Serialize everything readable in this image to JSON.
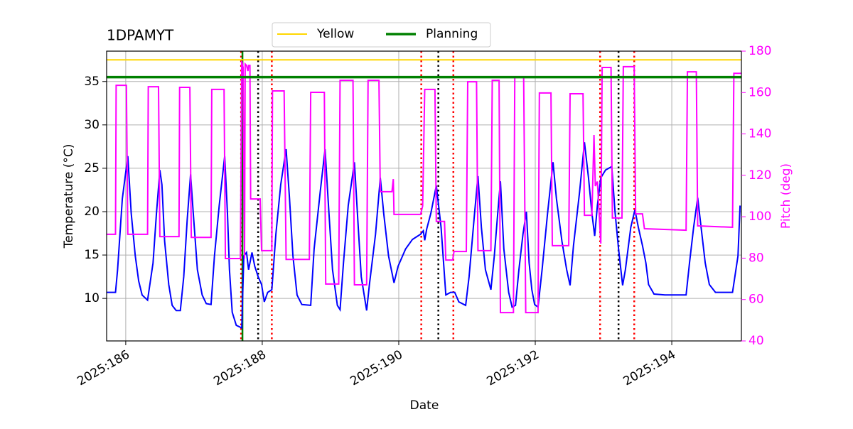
{
  "chart_data": {
    "type": "line",
    "title": "1DPAMYT",
    "xlabel": "Date",
    "ylabel": "Temperature (°C)",
    "y2label": "Pitch (deg)",
    "y2color": "#ff00ff",
    "grid": true,
    "xlim": [
      185.72,
      195.02
    ],
    "xticks": [
      {
        "value": 186,
        "label": "2025:186"
      },
      {
        "value": 188,
        "label": "2025:188"
      },
      {
        "value": 190,
        "label": "2025:190"
      },
      {
        "value": 192,
        "label": "2025:192"
      },
      {
        "value": 194,
        "label": "2025:194"
      }
    ],
    "ylim": [
      5.1,
      38.5
    ],
    "yticks": [
      10,
      15,
      20,
      25,
      30,
      35
    ],
    "y2lim": [
      40,
      180
    ],
    "y2ticks": [
      40,
      60,
      80,
      100,
      120,
      140,
      160,
      180
    ],
    "legend": "top-center",
    "hlines": [
      {
        "name": "Yellow",
        "value": 37.5,
        "color": "#ffd700"
      },
      {
        "name": "Planning",
        "value": 35.5,
        "color": "#008000"
      }
    ],
    "vlines": [
      {
        "x": 187.69,
        "color": "#ff0000",
        "style": "dotted"
      },
      {
        "x": 188.14,
        "color": "#ff0000",
        "style": "dotted"
      },
      {
        "x": 190.33,
        "color": "#ff0000",
        "style": "dotted"
      },
      {
        "x": 190.8,
        "color": "#ff0000",
        "style": "dotted"
      },
      {
        "x": 192.95,
        "color": "#ff0000",
        "style": "dotted"
      },
      {
        "x": 193.45,
        "color": "#ff0000",
        "style": "dotted"
      },
      {
        "x": 187.94,
        "color": "#000000",
        "style": "dotted"
      },
      {
        "x": 190.58,
        "color": "#000000",
        "style": "dotted"
      },
      {
        "x": 193.22,
        "color": "#000000",
        "style": "dotted"
      },
      {
        "x": 187.71,
        "color": "#008000",
        "style": "solid"
      }
    ],
    "series": [
      {
        "color": "#0000ff",
        "x": [
          185.72,
          185.85,
          185.88,
          185.95,
          186.03,
          186.08,
          186.14,
          186.19,
          186.24,
          186.32,
          186.4,
          186.45,
          186.5,
          186.53,
          186.57,
          186.63,
          186.68,
          186.74,
          186.8,
          186.85,
          186.9,
          186.95,
          186.99,
          187.05,
          187.12,
          187.18,
          187.25,
          187.3,
          187.37,
          187.45,
          187.49,
          187.52,
          187.56,
          187.62,
          187.7,
          187.73,
          187.77,
          187.8,
          187.85,
          187.89,
          187.94,
          187.99,
          188.03,
          188.08,
          188.14,
          188.2,
          188.27,
          188.35,
          188.4,
          188.45,
          188.51,
          188.58,
          188.71,
          188.76,
          188.85,
          188.92,
          188.97,
          189.03,
          189.1,
          189.14,
          189.19,
          189.26,
          189.35,
          189.4,
          189.45,
          189.53,
          189.57,
          189.66,
          189.73,
          189.78,
          189.85,
          189.93,
          189.99,
          190.1,
          190.2,
          190.32,
          190.36,
          190.38,
          190.41,
          190.47,
          190.55,
          190.62,
          190.69,
          190.76,
          190.82,
          190.88,
          190.98,
          191.03,
          191.11,
          191.16,
          191.21,
          191.27,
          191.35,
          191.4,
          191.45,
          191.49,
          191.54,
          191.61,
          191.66,
          191.71,
          191.76,
          191.82,
          191.87,
          191.91,
          191.95,
          191.99,
          192.04,
          192.1,
          192.18,
          192.26,
          192.31,
          192.39,
          192.46,
          192.51,
          192.56,
          192.65,
          192.72,
          192.78,
          192.83,
          192.87,
          192.91,
          192.96,
          193.03,
          193.12,
          193.17,
          193.22,
          193.28,
          193.32,
          193.4,
          193.46,
          193.51,
          193.57,
          193.62,
          193.66,
          193.74,
          193.9,
          194.21,
          194.26,
          194.32,
          194.38,
          194.43,
          194.49,
          194.55,
          194.64,
          194.89,
          194.97,
          195.0
        ],
        "values": [
          10.7,
          10.7,
          13.3,
          21.5,
          26.4,
          19.8,
          14.9,
          12.0,
          10.4,
          9.8,
          14.1,
          19.8,
          24.8,
          23.1,
          16.6,
          11.6,
          9.2,
          8.6,
          8.6,
          12.5,
          19.0,
          24.3,
          19.8,
          13.3,
          10.4,
          9.4,
          9.3,
          14.9,
          20.7,
          26.4,
          19.8,
          13.3,
          8.4,
          6.9,
          6.6,
          14.9,
          15.3,
          13.3,
          15.3,
          13.7,
          12.5,
          11.6,
          9.6,
          10.7,
          11.0,
          17.4,
          23.1,
          27.2,
          21.5,
          14.9,
          10.4,
          9.3,
          9.2,
          15.7,
          22.3,
          27.2,
          20.7,
          13.3,
          9.2,
          8.7,
          14.1,
          20.7,
          25.7,
          19.0,
          12.5,
          8.6,
          11.6,
          17.4,
          23.9,
          19.8,
          14.9,
          11.8,
          13.7,
          15.7,
          16.8,
          17.4,
          17.8,
          16.7,
          18.0,
          19.8,
          23.0,
          18.2,
          10.4,
          10.7,
          10.7,
          9.6,
          9.2,
          12.5,
          19.8,
          24.1,
          18.2,
          13.3,
          11.0,
          14.9,
          19.8,
          23.5,
          15.7,
          10.7,
          9.0,
          9.2,
          13.3,
          17.4,
          20.0,
          14.1,
          11.0,
          9.3,
          9.0,
          13.3,
          19.8,
          25.7,
          21.5,
          16.6,
          13.3,
          11.5,
          16.1,
          22.3,
          28.0,
          23.9,
          19.8,
          17.2,
          20.7,
          23.9,
          24.8,
          25.2,
          19.8,
          15.7,
          11.5,
          13.3,
          18.2,
          20.2,
          18.2,
          16.1,
          14.1,
          11.6,
          10.5,
          10.4,
          10.4,
          14.1,
          18.2,
          21.6,
          18.2,
          14.1,
          11.6,
          10.7,
          10.7,
          14.9,
          20.7
        ]
      },
      {
        "color": "#ff00ff",
        "axis": "y2",
        "x": [
          185.72,
          185.85,
          185.86,
          186.01,
          186.03,
          186.32,
          186.33,
          186.48,
          186.5,
          186.78,
          186.79,
          186.94,
          186.96,
          187.25,
          187.26,
          187.44,
          187.46,
          187.68,
          187.7,
          187.72,
          187.74,
          187.75,
          187.77,
          187.79,
          187.8,
          187.82,
          187.83,
          187.97,
          187.99,
          188.14,
          188.15,
          188.32,
          188.35,
          188.69,
          188.71,
          188.91,
          188.93,
          189.12,
          189.14,
          189.33,
          189.35,
          189.53,
          189.55,
          189.71,
          189.73,
          189.9,
          189.92,
          189.93,
          190.32,
          190.35,
          190.38,
          190.53,
          190.55,
          190.67,
          190.69,
          190.79,
          190.81,
          190.99,
          191.01,
          191.14,
          191.16,
          191.35,
          191.37,
          191.47,
          191.49,
          191.68,
          191.7,
          191.83,
          191.86,
          192.04,
          192.06,
          192.23,
          192.25,
          192.49,
          192.51,
          192.7,
          192.72,
          192.83,
          192.86,
          192.88,
          192.91,
          192.96,
          192.98,
          193.11,
          193.13,
          193.27,
          193.29,
          193.45,
          193.47,
          193.57,
          193.6,
          194.21,
          194.23,
          194.36,
          194.38,
          194.89,
          194.91,
          195.02
        ],
        "values": [
          91.5,
          91.5,
          163.5,
          163.5,
          91.5,
          91.5,
          162.8,
          162.8,
          90.4,
          90.4,
          162.5,
          162.5,
          90.0,
          90.0,
          161.5,
          161.5,
          79.8,
          79.8,
          175.2,
          172.1,
          79.8,
          173.8,
          173.1,
          170.4,
          173.1,
          173.1,
          108.6,
          108.6,
          83.6,
          83.6,
          160.8,
          160.8,
          79.4,
          79.4,
          160.1,
          160.1,
          67.5,
          67.5,
          165.9,
          165.9,
          67.1,
          67.1,
          165.9,
          165.9,
          112.1,
          112.1,
          118.2,
          101.1,
          101.1,
          105.2,
          161.5,
          161.5,
          97.7,
          97.7,
          79.1,
          79.1,
          83.2,
          83.2,
          165.2,
          165.2,
          83.6,
          83.6,
          165.9,
          165.9,
          53.7,
          53.7,
          167.3,
          167.3,
          53.7,
          53.7,
          159.8,
          159.8,
          86.0,
          86.0,
          159.4,
          159.4,
          100.7,
          100.7,
          139.5,
          114.8,
          117.0,
          87.0,
          172.1,
          172.1,
          99.4,
          99.4,
          172.5,
          172.5,
          101.4,
          101.4,
          94.2,
          93.5,
          170.0,
          170.0,
          95.6,
          94.9,
          169.3,
          169.3
        ]
      }
    ]
  }
}
